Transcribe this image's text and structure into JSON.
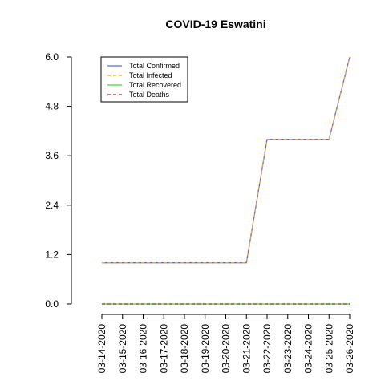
{
  "chart_data": {
    "type": "line",
    "title": "COVID-19 Eswatini",
    "xlabel": "",
    "ylabel": "",
    "x": [
      "03-14-2020",
      "03-15-2020",
      "03-16-2020",
      "03-17-2020",
      "03-18-2020",
      "03-19-2020",
      "03-20-2020",
      "03-21-2020",
      "03-22-2020",
      "03-23-2020",
      "03-24-2020",
      "03-25-2020",
      "03-26-2020"
    ],
    "ylim": [
      0,
      6
    ],
    "yticks": [
      "0.0",
      "1.2",
      "2.4",
      "3.6",
      "4.8",
      "6.0"
    ],
    "grid": false,
    "legend_position": "top-left",
    "series": [
      {
        "name": "Total Confirmed",
        "color": "#4f6bff",
        "dash": "solid",
        "values": [
          1,
          1,
          1,
          1,
          1,
          1,
          1,
          1,
          4,
          4,
          4,
          4,
          6
        ]
      },
      {
        "name": "Total Infected",
        "color": "#f5a623",
        "dash": "dashed",
        "values": [
          1,
          1,
          1,
          1,
          1,
          1,
          1,
          1,
          4,
          4,
          4,
          4,
          6
        ]
      },
      {
        "name": "Total Recovered",
        "color": "#33dd33",
        "dash": "solid",
        "values": [
          0,
          0,
          0,
          0,
          0,
          0,
          0,
          0,
          0,
          0,
          0,
          0,
          0
        ]
      },
      {
        "name": "Total Deaths",
        "color": "#9b2c2c",
        "dash": "dashed",
        "values": [
          0,
          0,
          0,
          0,
          0,
          0,
          0,
          0,
          0,
          0,
          0,
          0,
          0
        ]
      }
    ]
  }
}
